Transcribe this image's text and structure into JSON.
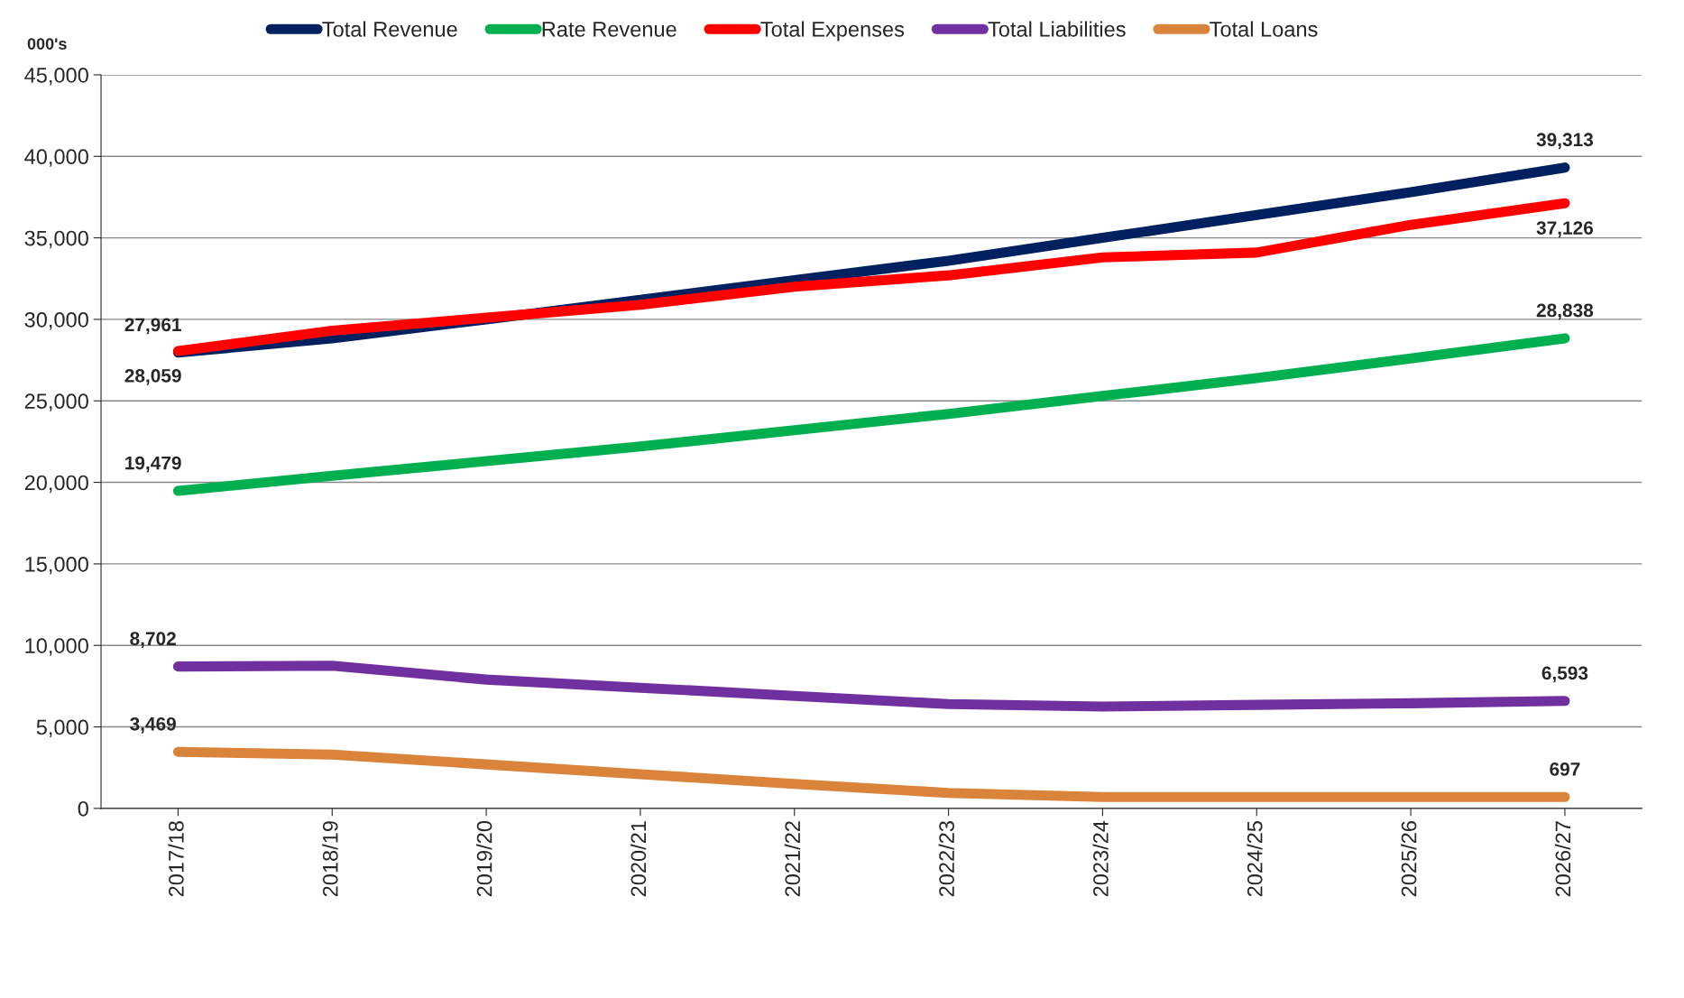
{
  "chart_data": {
    "type": "line",
    "ylabel": "000's",
    "categories": [
      "2017/18",
      "2018/19",
      "2019/20",
      "2020/21",
      "2021/22",
      "2022/23",
      "2023/24",
      "2024/25",
      "2025/26",
      "2026/27"
    ],
    "series": [
      {
        "name": "Total Revenue",
        "color": "#002060",
        "values": [
          27961,
          28840,
          30000,
          31200,
          32400,
          33600,
          35000,
          36400,
          37800,
          39313
        ],
        "value_labels": [
          "27,961",
          null,
          null,
          null,
          null,
          null,
          null,
          null,
          null,
          "39,313"
        ]
      },
      {
        "name": "Rate Revenue",
        "color": "#00b050",
        "values": [
          19479,
          20400,
          21300,
          22200,
          23200,
          24200,
          25300,
          26400,
          27600,
          28838
        ],
        "value_labels": [
          "19,479",
          null,
          null,
          null,
          null,
          null,
          null,
          null,
          null,
          "28,838"
        ]
      },
      {
        "name": "Total Expenses",
        "color": "#ff0000",
        "values": [
          28059,
          29300,
          30100,
          30900,
          32000,
          32700,
          33800,
          34100,
          35800,
          37126
        ],
        "value_labels": [
          "28,059",
          null,
          null,
          null,
          null,
          null,
          null,
          null,
          null,
          "37,126"
        ]
      },
      {
        "name": "Total Liabilities",
        "color": "#7030a0",
        "values": [
          8702,
          8750,
          7900,
          7400,
          6900,
          6400,
          6250,
          6350,
          6450,
          6593
        ],
        "value_labels": [
          "8,702",
          null,
          null,
          null,
          null,
          null,
          null,
          null,
          null,
          "6,593"
        ]
      },
      {
        "name": "Total Loans",
        "color": "#d9843a",
        "values": [
          3469,
          3300,
          2700,
          2100,
          1500,
          950,
          700,
          700,
          700,
          697
        ],
        "value_labels": [
          "3,469",
          null,
          null,
          null,
          null,
          null,
          null,
          null,
          null,
          "697"
        ]
      }
    ],
    "ylim": [
      0,
      45000
    ],
    "yticks": [
      {
        "value": 0,
        "label": "0"
      },
      {
        "value": 5000,
        "label": "5,000"
      },
      {
        "value": 10000,
        "label": "10,000"
      },
      {
        "value": 15000,
        "label": "15,000"
      },
      {
        "value": 20000,
        "label": "20,000"
      },
      {
        "value": 25000,
        "label": "25,000"
      },
      {
        "value": 30000,
        "label": "30,000"
      },
      {
        "value": 35000,
        "label": "35,000"
      },
      {
        "value": 40000,
        "label": "40,000"
      },
      {
        "value": 45000,
        "label": "45,000"
      }
    ],
    "grid": "y",
    "legend": "top",
    "marker": "none",
    "line_style": "solid"
  }
}
